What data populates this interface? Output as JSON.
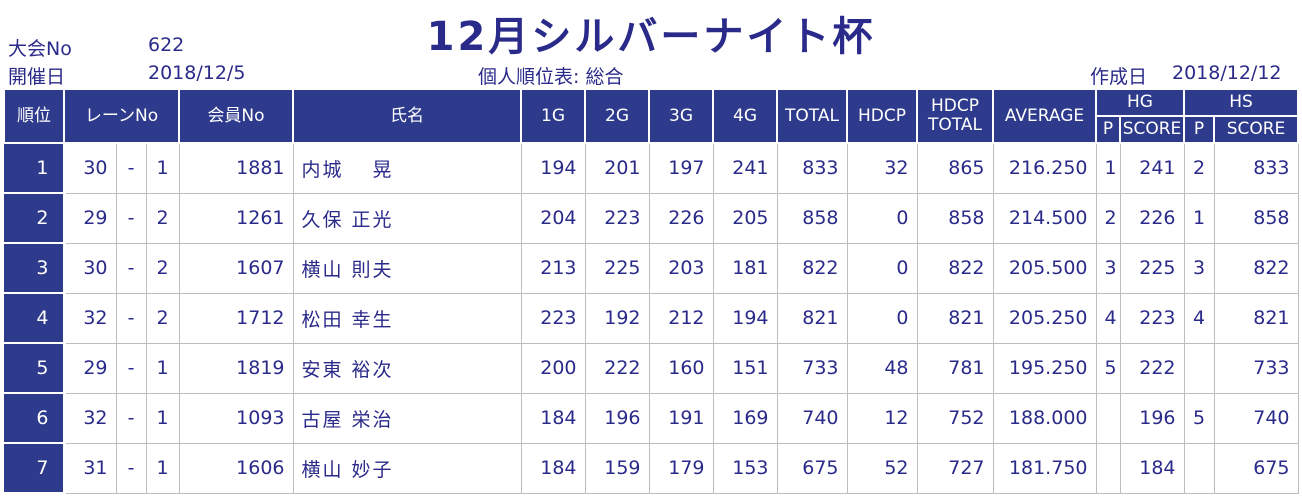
{
  "header": {
    "taikai_label": "大会No",
    "taikai_no": "622",
    "kaisai_label": "開催日",
    "kaisai_date": "2018/12/5",
    "title": "12月シルバーナイト杯",
    "subtitle": "個人順位表: 総合",
    "sakusei_label": "作成日",
    "sakusei_date": "2018/12/12"
  },
  "columns": {
    "rank": "順位",
    "lane": "レーンNo",
    "member": "会員No",
    "name": "氏名",
    "g1": "1G",
    "g2": "2G",
    "g3": "3G",
    "g4": "4G",
    "total": "TOTAL",
    "hdcp": "HDCP",
    "hdcp_total_1": "HDCP",
    "hdcp_total_2": "TOTAL",
    "average": "AVERAGE",
    "hg": "HG",
    "hs": "HS",
    "p": "P",
    "score": "SCORE"
  },
  "rows": [
    {
      "rank": "1",
      "lane": "30",
      "sep": "-",
      "lane_pos": "1",
      "member": "1881",
      "name": "内城　 晃",
      "g1": "194",
      "g2": "201",
      "g3": "197",
      "g4": "241",
      "total": "833",
      "hdcp": "32",
      "hdcp_total": "865",
      "average": "216.250",
      "hg_p": "1",
      "hg_score": "241",
      "hs_p": "2",
      "hs_score": "833"
    },
    {
      "rank": "2",
      "lane": "29",
      "sep": "-",
      "lane_pos": "2",
      "member": "1261",
      "name": "久保 正光",
      "g1": "204",
      "g2": "223",
      "g3": "226",
      "g4": "205",
      "total": "858",
      "hdcp": "0",
      "hdcp_total": "858",
      "average": "214.500",
      "hg_p": "2",
      "hg_score": "226",
      "hs_p": "1",
      "hs_score": "858"
    },
    {
      "rank": "3",
      "lane": "30",
      "sep": "-",
      "lane_pos": "2",
      "member": "1607",
      "name": "横山 則夫",
      "g1": "213",
      "g2": "225",
      "g3": "203",
      "g4": "181",
      "total": "822",
      "hdcp": "0",
      "hdcp_total": "822",
      "average": "205.500",
      "hg_p": "3",
      "hg_score": "225",
      "hs_p": "3",
      "hs_score": "822"
    },
    {
      "rank": "4",
      "lane": "32",
      "sep": "-",
      "lane_pos": "2",
      "member": "1712",
      "name": "松田 幸生",
      "g1": "223",
      "g2": "192",
      "g3": "212",
      "g4": "194",
      "total": "821",
      "hdcp": "0",
      "hdcp_total": "821",
      "average": "205.250",
      "hg_p": "4",
      "hg_score": "223",
      "hs_p": "4",
      "hs_score": "821"
    },
    {
      "rank": "5",
      "lane": "29",
      "sep": "-",
      "lane_pos": "1",
      "member": "1819",
      "name": "安東 裕次",
      "g1": "200",
      "g2": "222",
      "g3": "160",
      "g4": "151",
      "total": "733",
      "hdcp": "48",
      "hdcp_total": "781",
      "average": "195.250",
      "hg_p": "5",
      "hg_score": "222",
      "hs_p": "",
      "hs_score": "733"
    },
    {
      "rank": "6",
      "lane": "32",
      "sep": "-",
      "lane_pos": "1",
      "member": "1093",
      "name": "古屋 栄治",
      "g1": "184",
      "g2": "196",
      "g3": "191",
      "g4": "169",
      "total": "740",
      "hdcp": "12",
      "hdcp_total": "752",
      "average": "188.000",
      "hg_p": "",
      "hg_score": "196",
      "hs_p": "5",
      "hs_score": "740"
    },
    {
      "rank": "7",
      "lane": "31",
      "sep": "-",
      "lane_pos": "1",
      "member": "1606",
      "name": "横山 妙子",
      "g1": "184",
      "g2": "159",
      "g3": "179",
      "g4": "153",
      "total": "675",
      "hdcp": "52",
      "hdcp_total": "727",
      "average": "181.750",
      "hg_p": "",
      "hg_score": "184",
      "hs_p": "",
      "hs_score": "675"
    }
  ]
}
